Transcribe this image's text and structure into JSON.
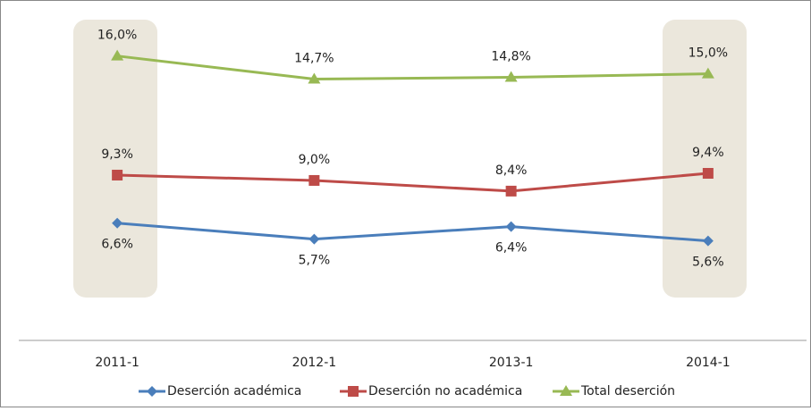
{
  "chart_data": {
    "type": "line",
    "categories": [
      "2011-1",
      "2012-1",
      "2013-1",
      "2014-1"
    ],
    "series": [
      {
        "name": "Deserción académica",
        "color": "#4a7ebb",
        "marker": "diamond",
        "values": [
          6.6,
          5.7,
          6.4,
          5.6
        ],
        "value_labels": [
          "6,6%",
          "5,7%",
          "6,4%",
          "5,6%"
        ],
        "label_position": "below"
      },
      {
        "name": "Deserción no académica",
        "color": "#be4b48",
        "marker": "square",
        "values": [
          9.3,
          9.0,
          8.4,
          9.4
        ],
        "value_labels": [
          "9,3%",
          "9,0%",
          "8,4%",
          "9,4%"
        ],
        "label_position": "above"
      },
      {
        "name": "Total deserción",
        "color": "#98b954",
        "marker": "triangle",
        "values": [
          16.0,
          14.7,
          14.8,
          15.0
        ],
        "value_labels": [
          "16,0%",
          "14,7%",
          "14,8%",
          "15,0%"
        ],
        "label_position": "above"
      }
    ],
    "ylim": [
      0,
      19
    ],
    "legend": "bottom"
  }
}
